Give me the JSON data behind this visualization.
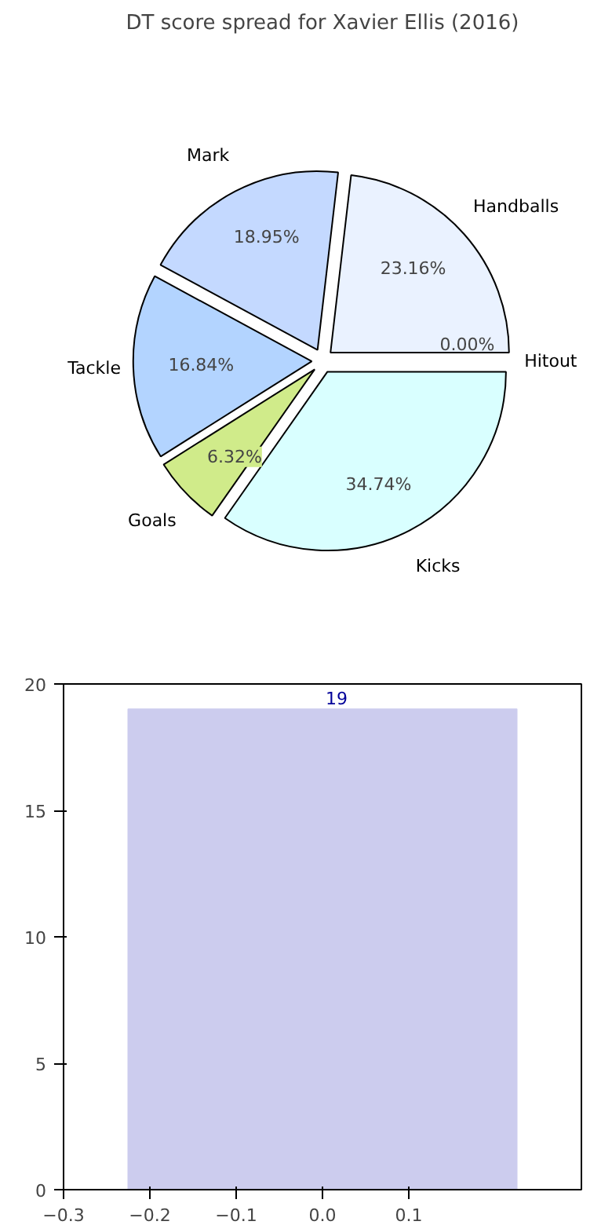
{
  "chart_data": [
    {
      "type": "pie",
      "title": "DT score spread for Xavier Ellis (2016)",
      "categories": [
        "Hitout",
        "Handballs",
        "Mark",
        "Tackle",
        "Goals",
        "Kicks"
      ],
      "values": [
        0.0,
        23.16,
        18.95,
        16.84,
        6.32,
        34.74
      ],
      "colors": [
        "#d9d9d9",
        "#eaf2ff",
        "#c4d9ff",
        "#b3d4ff",
        "#d0eb8a",
        "#d9ffff"
      ],
      "value_labels": [
        "0.00%",
        "23.16%",
        "18.95%",
        "16.84%",
        "6.32%",
        "34.74%"
      ]
    },
    {
      "type": "area",
      "x": [
        -0.225,
        0.225
      ],
      "series": [
        {
          "color": "#ccccee",
          "values": [
            19,
            19
          ]
        }
      ],
      "xlim": [
        -0.3,
        0.3
      ],
      "ylim": [
        0,
        20
      ],
      "xticks": [
        {
          "value": -0.3,
          "label": "−0.3"
        },
        {
          "value": -0.2,
          "label": "−0.2"
        },
        {
          "value": -0.1,
          "label": "−0.1"
        },
        {
          "value": 0.0,
          "label": "0.0"
        },
        {
          "value": 0.1,
          "label": "0.1"
        }
      ],
      "yticks": [
        0,
        5,
        10,
        15,
        20
      ],
      "grid": false,
      "annotations": [
        {
          "text": "19",
          "x": 0,
          "y": 19
        }
      ]
    }
  ]
}
